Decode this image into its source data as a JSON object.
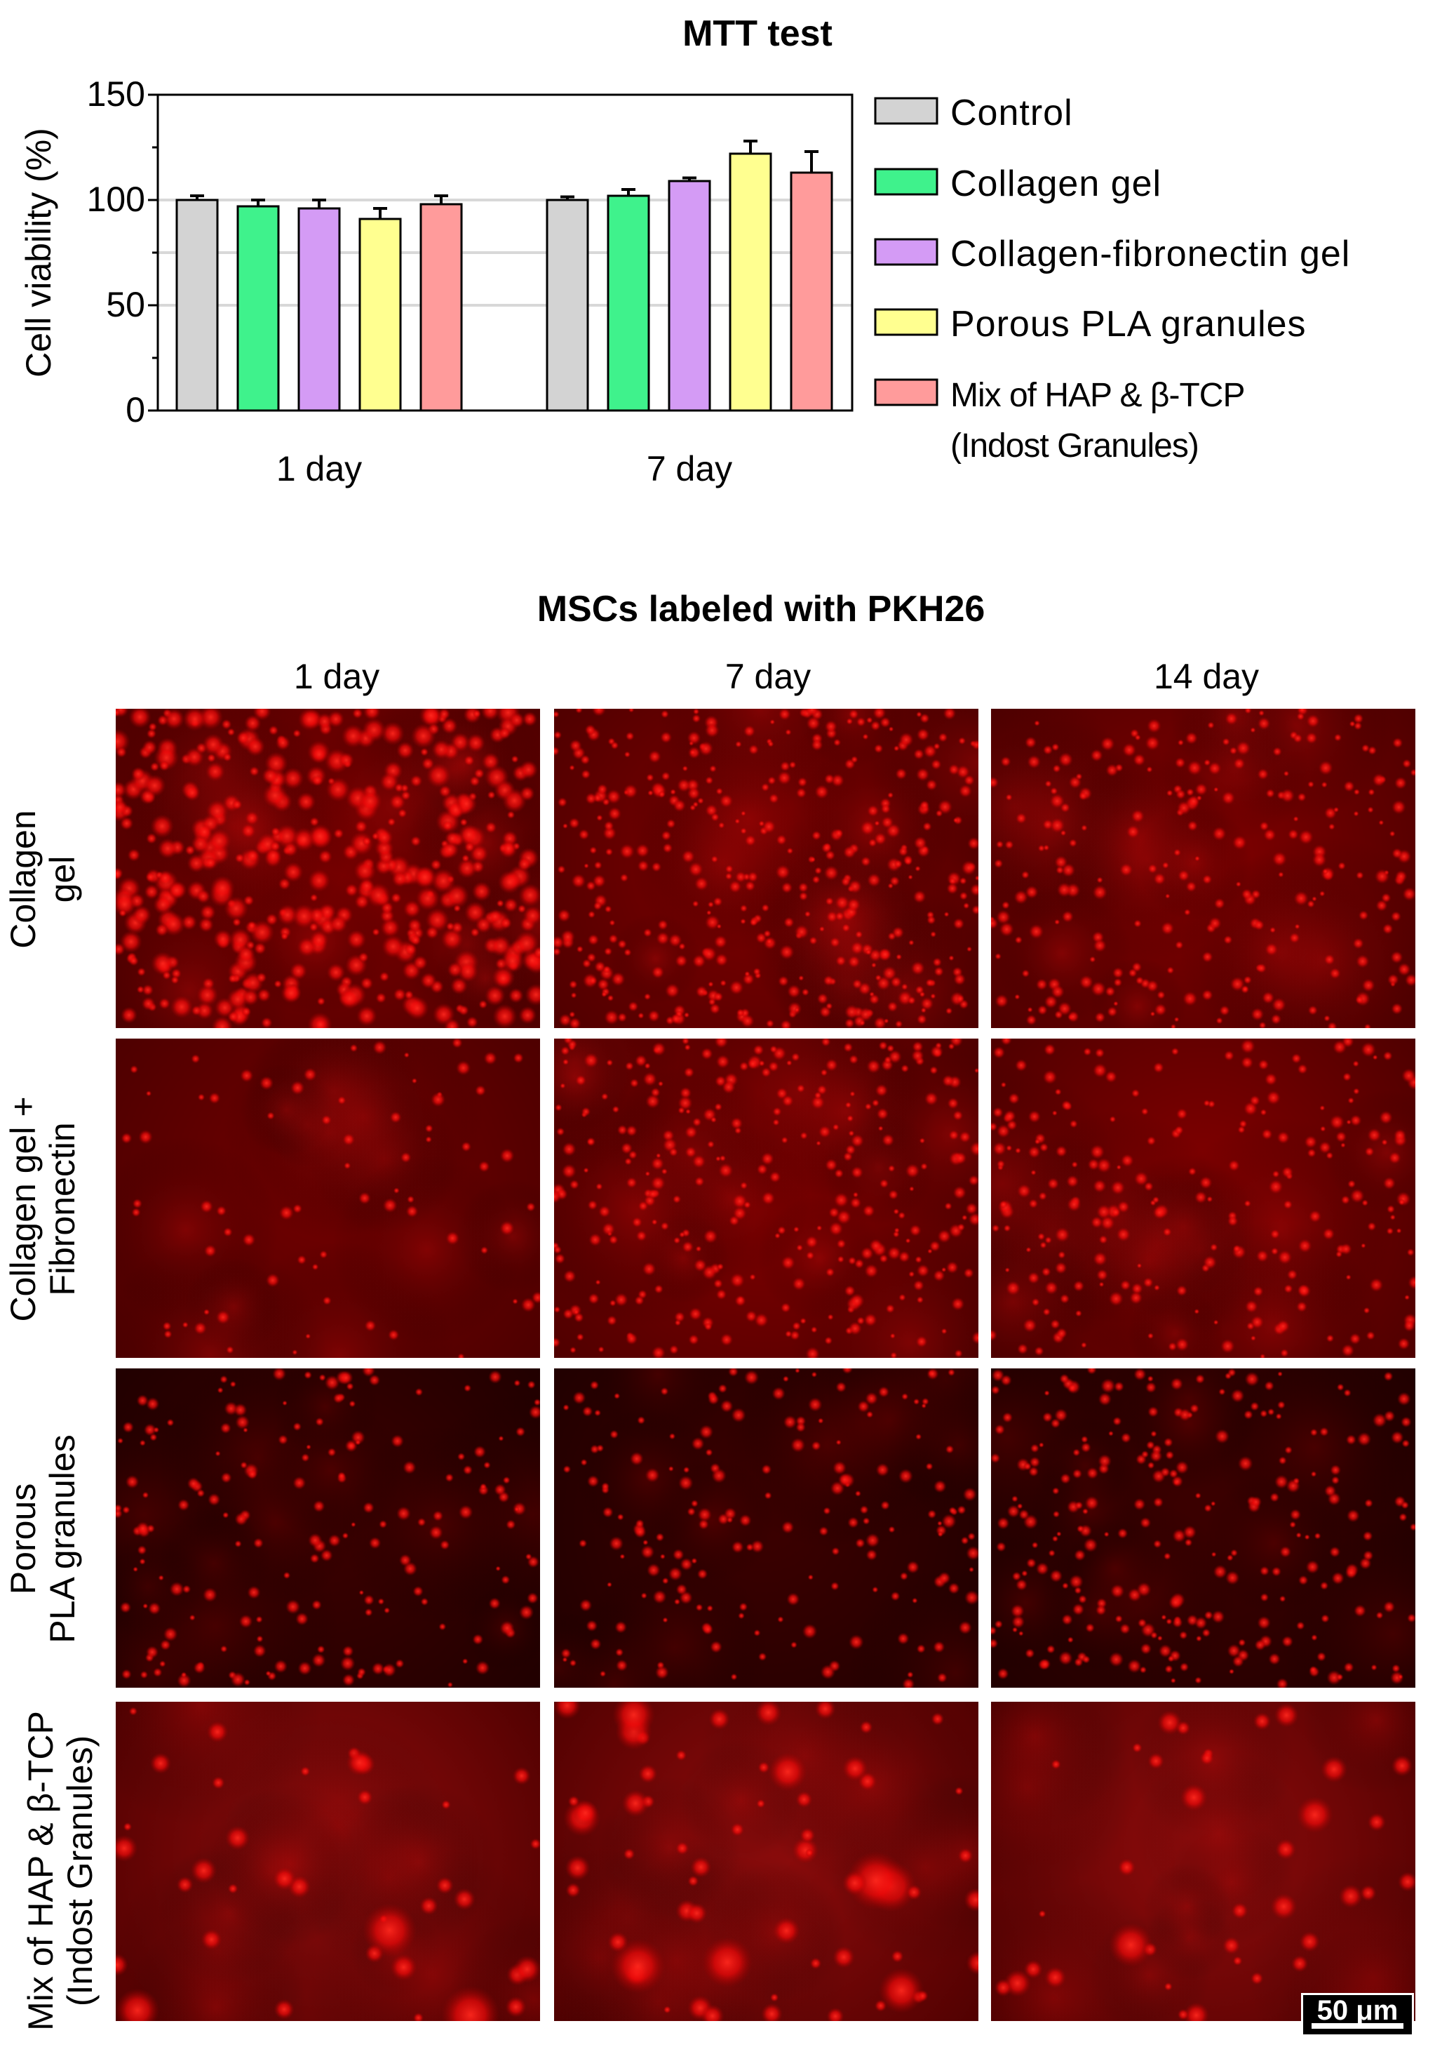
{
  "chart_data": {
    "type": "bar",
    "title": "MTT test",
    "ylabel": "Cell viability (%)",
    "xlabel": "",
    "ylim": [
      0,
      150
    ],
    "yticks": [
      "0",
      "50",
      "100",
      "150"
    ],
    "gridlines": [
      50,
      75,
      100
    ],
    "legend_position": "right",
    "categories": [
      "1 day",
      "7 day"
    ],
    "series": [
      {
        "name": "Control",
        "color": "#d3d3d3",
        "values": [
          100,
          100
        ],
        "errors": [
          2,
          1.5
        ]
      },
      {
        "name": "Collagen gel",
        "color": "#3ff28c",
        "values": [
          97,
          102
        ],
        "errors": [
          3,
          3
        ]
      },
      {
        "name": "Collagen-fibronectin gel",
        "color": "#d49bf5",
        "values": [
          96,
          109
        ],
        "errors": [
          4,
          1.5
        ]
      },
      {
        "name": "Porous PLA granules",
        "color": "#ffff90",
        "values": [
          91,
          122
        ],
        "errors": [
          5,
          6
        ]
      },
      {
        "name": "Mix of HAP & β-TCP\n(Indost Granules)",
        "color": "#ff9b9b",
        "values": [
          98,
          113
        ],
        "errors": [
          4,
          10
        ]
      }
    ]
  },
  "figure": {
    "title": "MSCs labeled with PKH26",
    "columns": [
      "1 day",
      "7 day",
      "14 day"
    ],
    "rows": [
      {
        "label": "Collagen\ngel",
        "panels": [
          {
            "density": 0.85,
            "style": "cluster"
          },
          {
            "density": 0.8,
            "style": "dense"
          },
          {
            "density": 0.5,
            "style": "dense"
          }
        ]
      },
      {
        "label": "Collagen gel +\nFibronectin",
        "panels": [
          {
            "density": 0.4,
            "style": "dots"
          },
          {
            "density": 0.6,
            "style": "dense"
          },
          {
            "density": 0.45,
            "style": "dense"
          }
        ]
      },
      {
        "label": "Porous\nPLA granules",
        "panels": [
          {
            "density": 0.35,
            "style": "dark"
          },
          {
            "density": 0.35,
            "style": "dark"
          },
          {
            "density": 0.5,
            "style": "dark"
          }
        ]
      },
      {
        "label": "Mix of HAP & β-TCP\n(Indost Granules)",
        "panels": [
          {
            "density": 0.3,
            "style": "sparse"
          },
          {
            "density": 0.5,
            "style": "sparse"
          },
          {
            "density": 0.3,
            "style": "sparse"
          }
        ]
      }
    ],
    "scale_bar": "50 μm"
  }
}
